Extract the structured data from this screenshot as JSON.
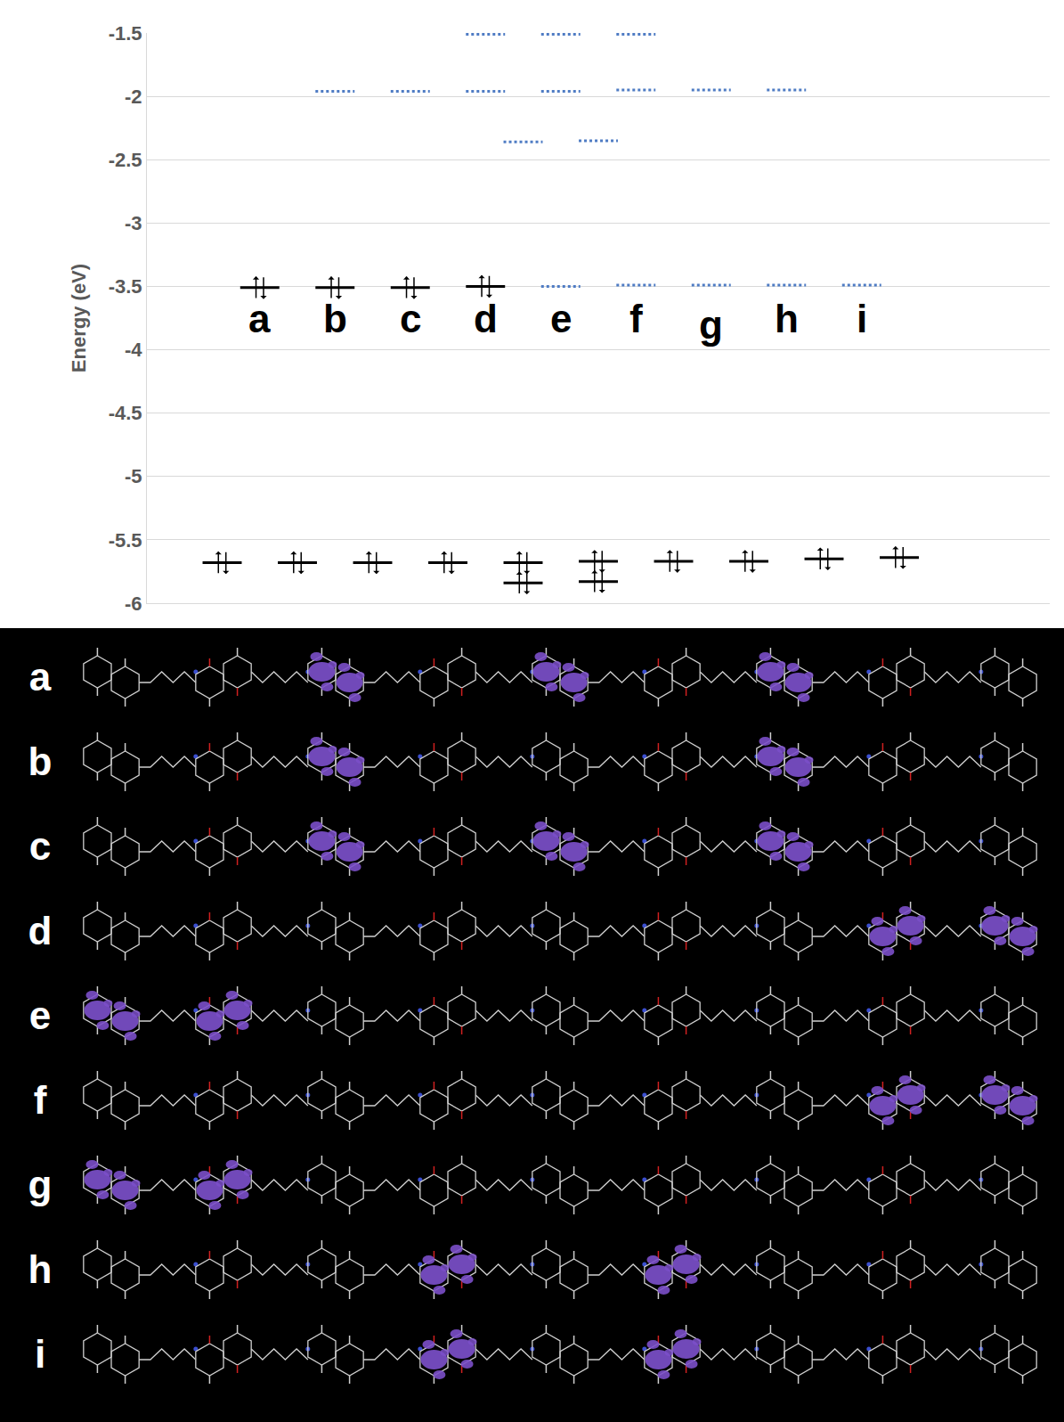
{
  "chart_data": {
    "type": "energy_levels",
    "y_label": "Energy (eV)",
    "ylim": [
      -6,
      -1.5
    ],
    "yticks": [
      -6,
      -5.5,
      -5,
      -4.5,
      -4,
      -3.5,
      -3,
      -2.5,
      -2,
      -1.5
    ],
    "xlim": [
      0,
      12
    ],
    "xticks": [],
    "grid": true,
    "tick_labels": "y",
    "series": [
      {
        "color": "#000000",
        "line_style": "solid",
        "marker": "spin-pair",
        "x": [
          1.5,
          2.5,
          3.5,
          4.5,
          1,
          2,
          3,
          4,
          5,
          5,
          6,
          6,
          7,
          8,
          9,
          10
        ],
        "values": [
          -3.51,
          -3.51,
          -3.51,
          -3.5,
          -5.68,
          -5.68,
          -5.68,
          -5.68,
          -5.68,
          -5.84,
          -5.67,
          -5.83,
          -5.67,
          -5.67,
          -5.65,
          -5.64
        ]
      },
      {
        "color": "#4f7cc4",
        "line_style": "dotted",
        "marker": "none",
        "x": [
          5.5,
          6.5,
          7.5,
          8.5,
          9.5,
          2.5,
          3.5,
          4.5,
          5.5,
          6.5,
          7.5,
          8.5,
          4.5,
          5.5,
          6.5,
          5,
          6
        ],
        "values": [
          -3.5,
          -3.49,
          -3.49,
          -3.49,
          -3.49,
          -1.96,
          -1.96,
          -1.96,
          -1.96,
          -1.95,
          -1.95,
          -1.95,
          -1.51,
          -1.51,
          -1.51,
          -2.36,
          -2.35
        ]
      }
    ],
    "annotations": [
      {
        "text": "a",
        "x": 1.5,
        "y": -3.75
      },
      {
        "text": "b",
        "x": 2.5,
        "y": -3.75
      },
      {
        "text": "c",
        "x": 3.5,
        "y": -3.75
      },
      {
        "text": "d",
        "x": 4.5,
        "y": -3.75
      },
      {
        "text": "e",
        "x": 5.5,
        "y": -3.75
      },
      {
        "text": "f",
        "x": 6.5,
        "y": -3.75
      },
      {
        "text": "g",
        "x": 7.5,
        "y": -3.8
      },
      {
        "text": "h",
        "x": 8.5,
        "y": -3.75
      },
      {
        "text": "i",
        "x": 9.5,
        "y": -3.75
      }
    ]
  },
  "orbitals": {
    "color": "#7b4fc9",
    "rows": [
      {
        "label": "a",
        "highlighted_units": [
          2,
          4,
          6
        ]
      },
      {
        "label": "b",
        "highlighted_units": [
          2,
          6
        ]
      },
      {
        "label": "c",
        "highlighted_units": [
          2,
          4,
          6
        ]
      },
      {
        "label": "d",
        "highlighted_units": [
          7,
          8
        ]
      },
      {
        "label": "e",
        "highlighted_units": [
          0,
          1
        ]
      },
      {
        "label": "f",
        "highlighted_units": [
          7,
          8
        ]
      },
      {
        "label": "g",
        "highlighted_units": [
          0,
          1
        ]
      },
      {
        "label": "h",
        "highlighted_units": [
          3,
          5
        ]
      },
      {
        "label": "i",
        "highlighted_units": [
          3,
          5
        ]
      }
    ]
  }
}
